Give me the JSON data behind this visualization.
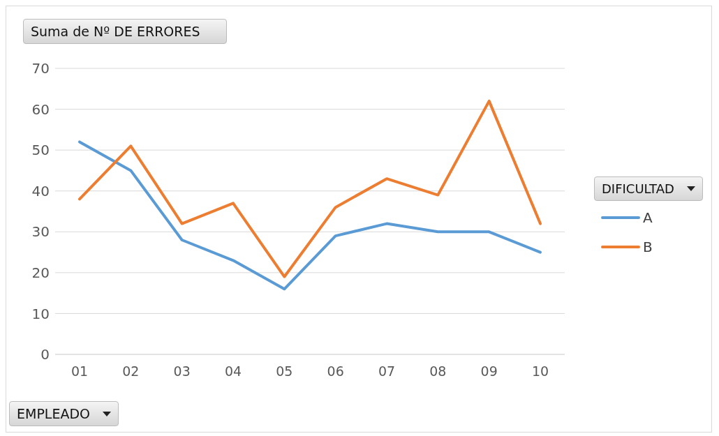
{
  "chart_data": {
    "type": "line",
    "title": "Suma de Nº DE ERRORES",
    "xlabel": "EMPLEADO",
    "legend_title": "DIFICULTAD",
    "categories": [
      "01",
      "02",
      "03",
      "04",
      "05",
      "06",
      "07",
      "08",
      "09",
      "10"
    ],
    "series": [
      {
        "name": "A",
        "color": "#5b9bd5",
        "values": [
          52,
          45,
          28,
          23,
          16,
          29,
          32,
          30,
          30,
          25
        ]
      },
      {
        "name": "B",
        "color": "#ed7d31",
        "values": [
          38,
          51,
          32,
          37,
          19,
          36,
          43,
          39,
          62,
          32
        ]
      }
    ],
    "ylim": [
      0,
      70
    ],
    "yticks": [
      0,
      10,
      20,
      30,
      40,
      50,
      60,
      70
    ],
    "grid": "y",
    "legend": "right",
    "marker": "none",
    "line_style": "solid"
  }
}
